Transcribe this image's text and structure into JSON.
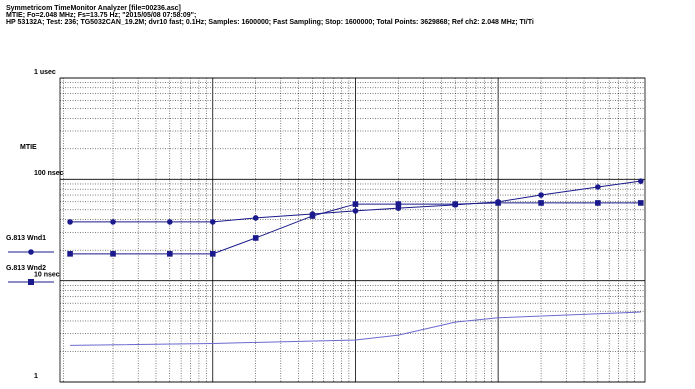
{
  "header": {
    "lines": [
      "Symmetricom TimeMonitor Analyzer    [file=00236.asc]",
      "MTIE; Fo=2.048 MHz; Fs=13.75 Hz; \"2015/05/08  07:58:09\";",
      "HP 53132A;  Test: 236;  TG5032CAN_19.2M;  dvr10 fast;  0.1Hz;  Samples: 1600000;  Fast Sampling;  Stop: 1600000;  Total Points: 3629868;  Ref ch2: 2.048 MHz; TI/Ti"
    ]
  },
  "chart_data": {
    "type": "line",
    "ylabel": "MTIE",
    "log_x": true,
    "log_y": true,
    "grid": true,
    "xlim": [
      0.85,
      10700
    ],
    "xticks": [
      10,
      100,
      1000
    ],
    "ylim": [
      1,
      1000
    ],
    "yticks": [
      {
        "value": 1000,
        "label": "1 usec"
      },
      {
        "value": 100,
        "label": "100 nsec"
      },
      {
        "value": 10,
        "label": "10 nsec"
      },
      1
    ],
    "x": [
      1,
      2,
      5,
      10,
      20,
      50,
      100,
      200,
      500,
      1000,
      2000,
      5000,
      10000
    ],
    "series": [
      {
        "name": "G.813 Wnd1",
        "color": "#1a1a8c",
        "marker": "circle",
        "values": [
          38,
          38,
          38,
          38,
          41.6,
          45.5,
          48.8,
          52,
          56,
          60,
          70,
          84,
          96
        ]
      },
      {
        "name": "G.813 Wnd2",
        "color": "#1a1a8c",
        "marker": "square",
        "values": [
          18.4,
          18.4,
          18.4,
          18.4,
          26.4,
          43.5,
          57,
          57,
          57,
          58.5,
          58.5,
          58.5,
          58.5
        ]
      },
      {
        "color": "#6a6ad0",
        "x": [
          1,
          10,
          100,
          200,
          500,
          1000,
          10000
        ],
        "values": [
          2.3,
          2.4,
          2.6,
          2.9,
          3.9,
          4.3,
          4.9
        ]
      }
    ]
  }
}
